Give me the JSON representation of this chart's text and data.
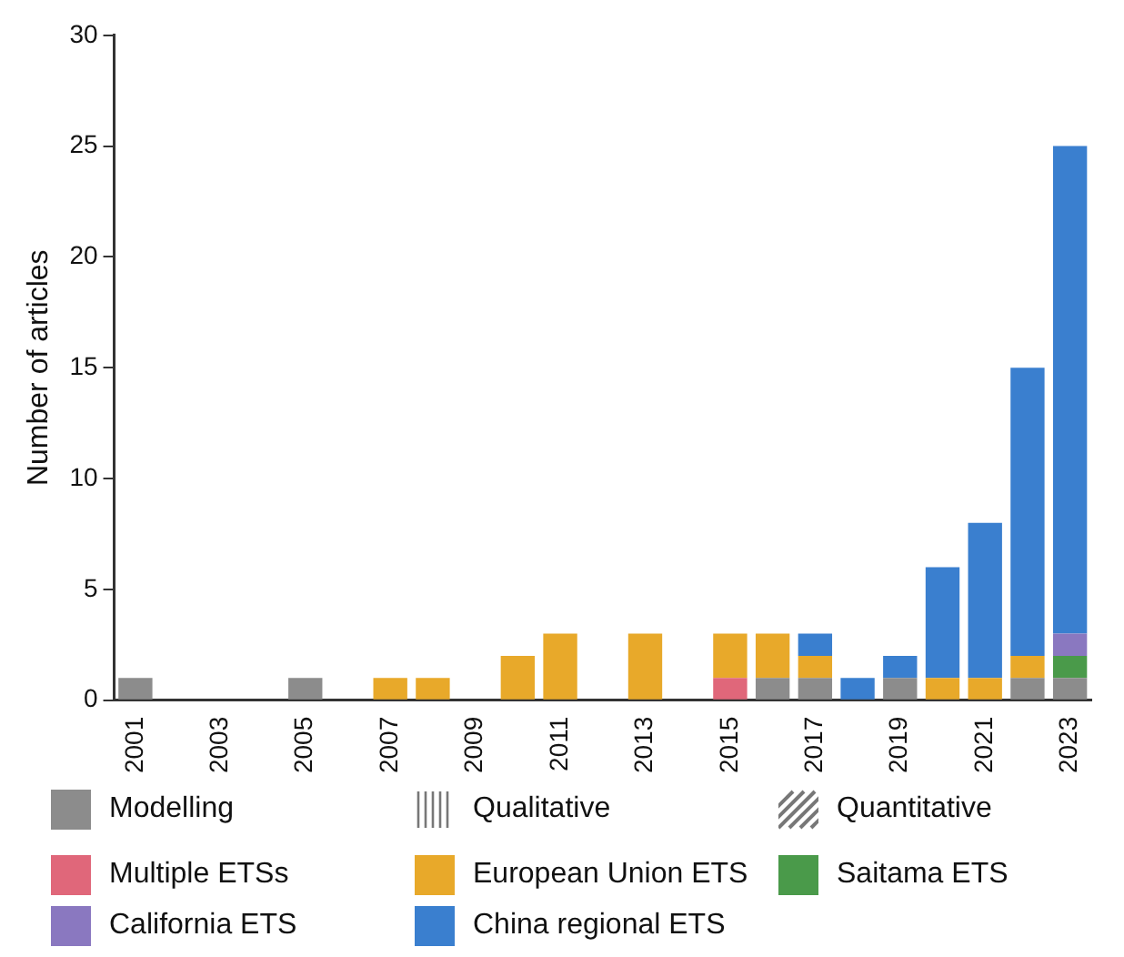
{
  "chart_data": {
    "type": "bar",
    "stacked": true,
    "ylabel": "Number of articles",
    "categories": [
      "2001",
      null,
      "2003",
      null,
      "2005",
      null,
      "2007",
      null,
      "2009",
      null,
      "2011",
      null,
      "2013",
      null,
      "2015",
      null,
      "2017",
      null,
      "2019",
      null,
      "2021",
      null,
      "2023"
    ],
    "series": [
      {
        "name": "Modelling",
        "color": "#8c8c8c",
        "values": [
          1,
          null,
          null,
          null,
          1,
          null,
          null,
          null,
          null,
          null,
          null,
          null,
          null,
          null,
          null,
          1,
          1,
          null,
          1,
          null,
          null,
          1,
          1
        ]
      },
      {
        "name": "Multiple ETSs",
        "color": "#e0677a",
        "values": [
          null,
          null,
          null,
          null,
          null,
          null,
          null,
          null,
          null,
          null,
          null,
          null,
          null,
          null,
          1,
          null,
          null,
          null,
          null,
          null,
          null,
          null,
          null
        ]
      },
      {
        "name": "European Union ETS",
        "color": "#e8a92a",
        "values": [
          null,
          null,
          null,
          null,
          null,
          null,
          1,
          1,
          null,
          2,
          3,
          null,
          2,
          null,
          1,
          1,
          null,
          null,
          null,
          null,
          null,
          null,
          null
        ]
      },
      {
        "color": "#e8a92a",
        "values": [
          null,
          null,
          null,
          null,
          null,
          null,
          null,
          null,
          null,
          null,
          null,
          null,
          1,
          null,
          1,
          1,
          1,
          null,
          null,
          1,
          1,
          1,
          null
        ]
      },
      {
        "name": "Saitama ETS",
        "color": "#4a9a4a",
        "values": [
          null,
          null,
          null,
          null,
          null,
          null,
          null,
          null,
          null,
          null,
          null,
          null,
          null,
          null,
          null,
          null,
          null,
          null,
          null,
          null,
          null,
          null,
          1
        ]
      },
      {
        "name": "California ETS",
        "color": "#8a78c0",
        "values": [
          null,
          null,
          null,
          null,
          null,
          null,
          null,
          null,
          null,
          null,
          null,
          null,
          null,
          null,
          null,
          null,
          null,
          null,
          null,
          null,
          null,
          null,
          1
        ]
      },
      {
        "name": "China regional ETS",
        "color": "#3a7fcf",
        "values": [
          null,
          null,
          null,
          null,
          null,
          null,
          null,
          null,
          null,
          null,
          null,
          null,
          null,
          null,
          null,
          null,
          1,
          1,
          1,
          5,
          7,
          13,
          22
        ]
      }
    ],
    "annotations": [
      "Qualitative",
      "Quantitative"
    ],
    "ylim": [
      0,
      30
    ],
    "yticks": [
      0,
      5,
      10,
      15,
      20,
      25,
      30
    ],
    "grid": false,
    "legend": "bottom"
  }
}
